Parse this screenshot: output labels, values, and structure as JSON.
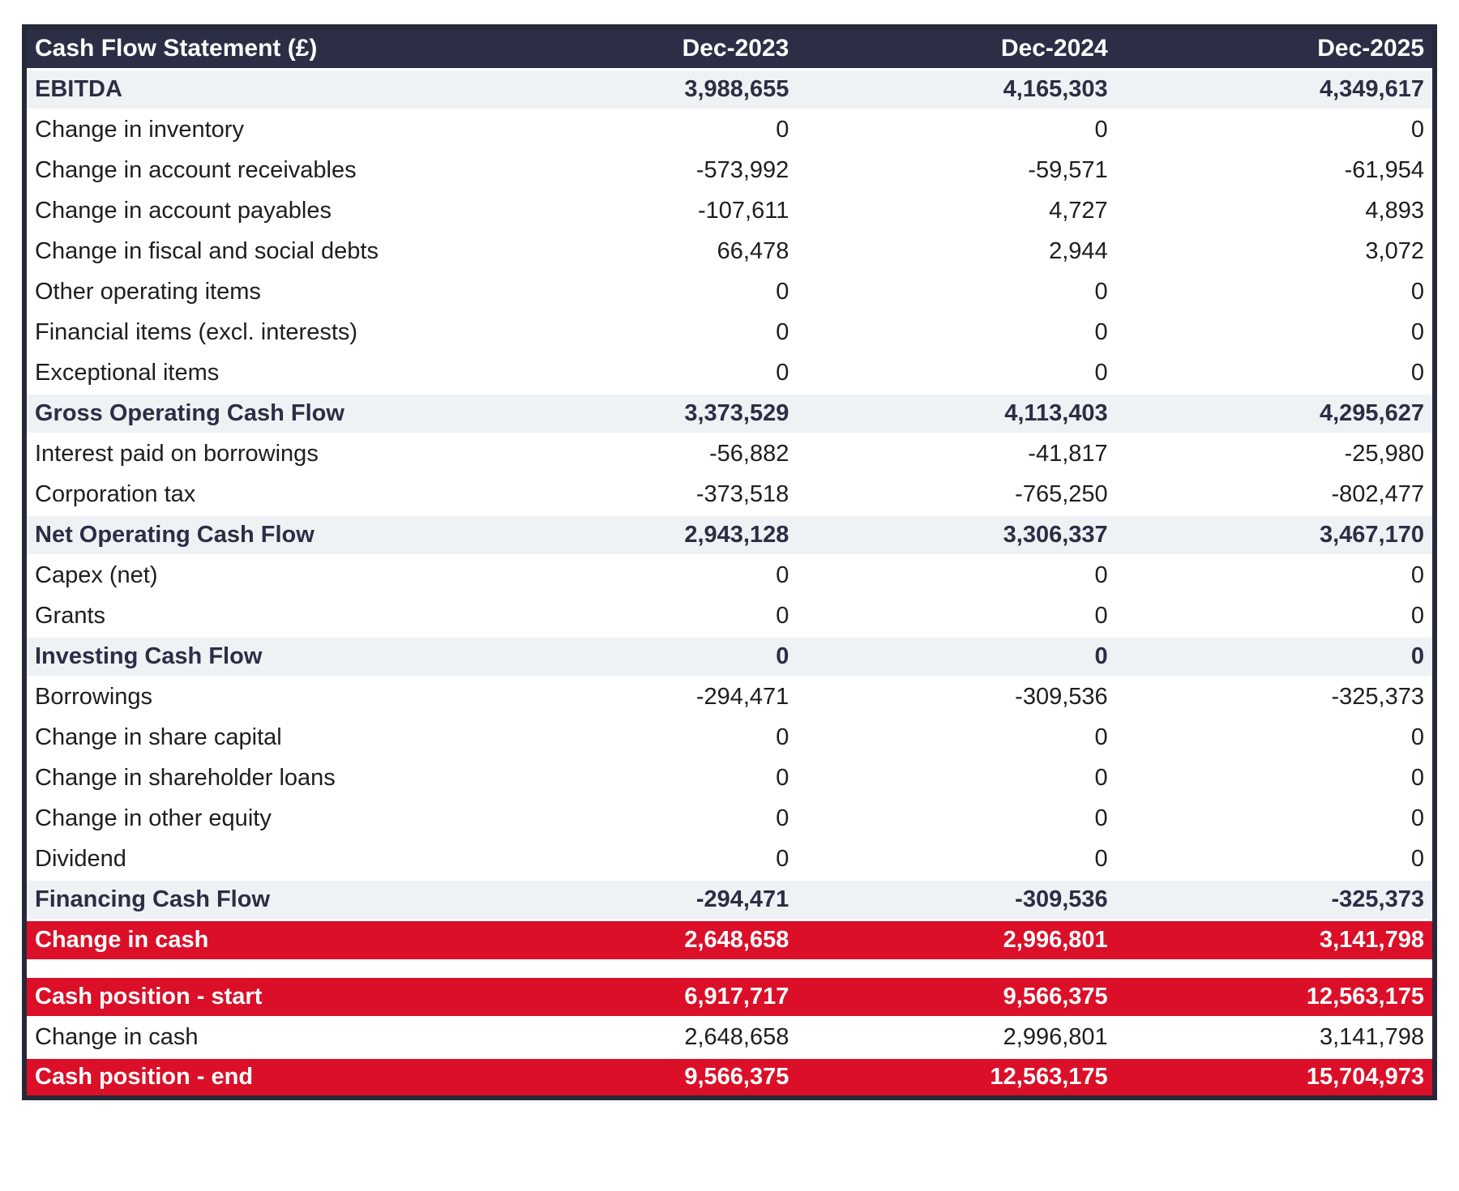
{
  "colors": {
    "header_bg": "#2B2E44",
    "border": "#262939",
    "subtotal_bg": "#EFF2F4",
    "highlight_bg": "#DB0F28",
    "normal_text": "#1E1E1E",
    "navy_text": "#2B2E44",
    "white": "#FFFFFF"
  },
  "table": {
    "header": {
      "label": "Cash Flow Statement (£)",
      "columns": [
        "Dec-2023",
        "Dec-2024",
        "Dec-2025"
      ]
    },
    "rows": [
      {
        "label": "EBITDA",
        "values": [
          "3,988,655",
          "4,165,303",
          "4,349,617"
        ],
        "style": "subtotal"
      },
      {
        "label": "Change in inventory",
        "values": [
          "0",
          "0",
          "0"
        ],
        "style": "normal"
      },
      {
        "label": "Change in account receivables",
        "values": [
          "-573,992",
          "-59,571",
          "-61,954"
        ],
        "style": "normal"
      },
      {
        "label": "Change in account payables",
        "values": [
          "-107,611",
          "4,727",
          "4,893"
        ],
        "style": "normal"
      },
      {
        "label": "Change in fiscal and social debts",
        "values": [
          "66,478",
          "2,944",
          "3,072"
        ],
        "style": "normal"
      },
      {
        "label": "Other operating items",
        "values": [
          "0",
          "0",
          "0"
        ],
        "style": "normal"
      },
      {
        "label": "Financial items (excl. interests)",
        "values": [
          "0",
          "0",
          "0"
        ],
        "style": "normal"
      },
      {
        "label": "Exceptional items",
        "values": [
          "0",
          "0",
          "0"
        ],
        "style": "normal"
      },
      {
        "label": "Gross Operating Cash Flow",
        "values": [
          "3,373,529",
          "4,113,403",
          "4,295,627"
        ],
        "style": "subtotal"
      },
      {
        "label": "Interest paid on borrowings",
        "values": [
          "-56,882",
          "-41,817",
          "-25,980"
        ],
        "style": "normal"
      },
      {
        "label": "Corporation tax",
        "values": [
          "-373,518",
          "-765,250",
          "-802,477"
        ],
        "style": "normal"
      },
      {
        "label": "Net Operating Cash Flow",
        "values": [
          "2,943,128",
          "3,306,337",
          "3,467,170"
        ],
        "style": "subtotal"
      },
      {
        "label": "Capex (net)",
        "values": [
          "0",
          "0",
          "0"
        ],
        "style": "normal"
      },
      {
        "label": "Grants",
        "values": [
          "0",
          "0",
          "0"
        ],
        "style": "normal"
      },
      {
        "label": "Investing Cash Flow",
        "values": [
          "0",
          "0",
          "0"
        ],
        "style": "subtotal"
      },
      {
        "label": "Borrowings",
        "values": [
          "-294,471",
          "-309,536",
          "-325,373"
        ],
        "style": "normal"
      },
      {
        "label": "Change in share capital",
        "values": [
          "0",
          "0",
          "0"
        ],
        "style": "normal"
      },
      {
        "label": "Change in shareholder loans",
        "values": [
          "0",
          "0",
          "0"
        ],
        "style": "normal"
      },
      {
        "label": "Change in other equity",
        "values": [
          "0",
          "0",
          "0"
        ],
        "style": "normal"
      },
      {
        "label": "Dividend",
        "values": [
          "0",
          "0",
          "0"
        ],
        "style": "normal"
      },
      {
        "label": "Financing Cash Flow",
        "values": [
          "-294,471",
          "-309,536",
          "-325,373"
        ],
        "style": "subtotal"
      },
      {
        "label": "Change in cash",
        "values": [
          "2,648,658",
          "2,996,801",
          "3,141,798"
        ],
        "style": "highlight"
      },
      {
        "label": "",
        "values": [
          "",
          "",
          ""
        ],
        "style": "spacer"
      },
      {
        "label": "Cash position - start",
        "values": [
          "6,917,717",
          "9,566,375",
          "12,563,175"
        ],
        "style": "highlight"
      },
      {
        "label": "Change in cash",
        "values": [
          "2,648,658",
          "2,996,801",
          "3,141,798"
        ],
        "style": "normal"
      },
      {
        "label": "Cash position - end",
        "values": [
          "9,566,375",
          "12,563,175",
          "15,704,973"
        ],
        "style": "highlight"
      }
    ]
  }
}
